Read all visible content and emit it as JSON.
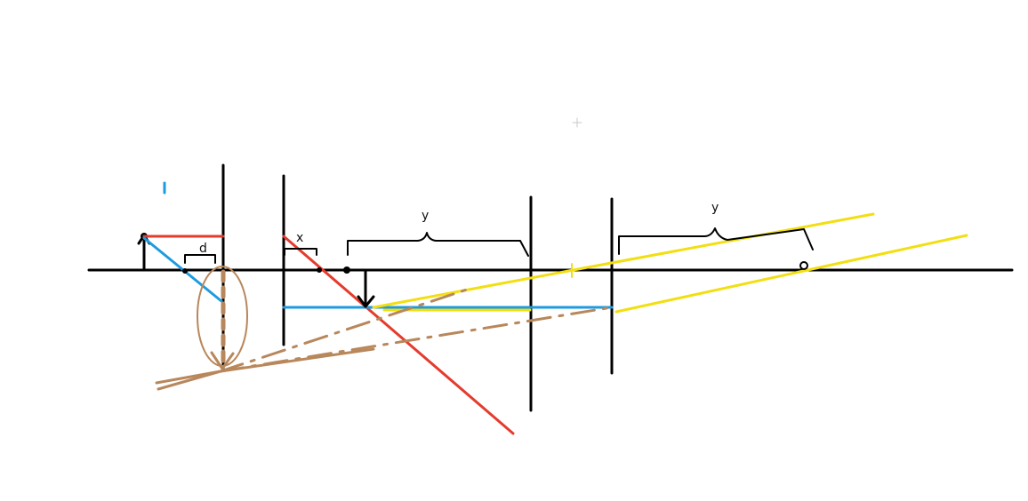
{
  "labels": {
    "x": "x",
    "y_left": "y",
    "y_right": "y",
    "d": "d"
  },
  "colors": {
    "black": "#000000",
    "red": "#e53b2c",
    "blue": "#1e9be0",
    "yellow": "#f2df12",
    "brown": "#b8875b"
  }
}
